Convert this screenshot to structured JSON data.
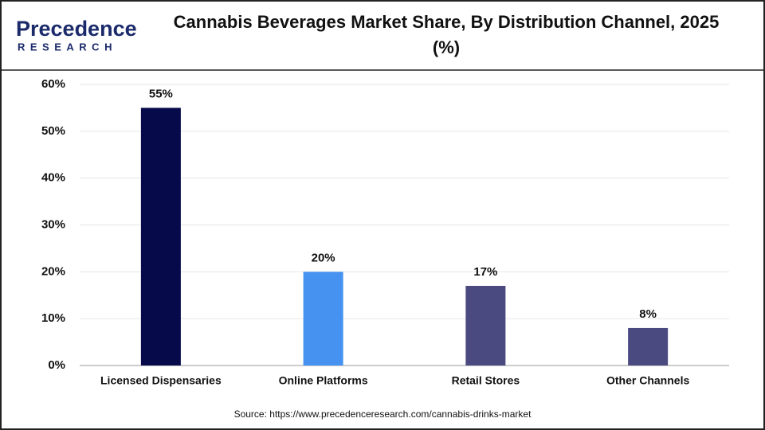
{
  "logo": {
    "name": "Precedence",
    "tagline": "RESEARCH"
  },
  "chart_data": {
    "type": "bar",
    "title": "Cannabis Beverages Market Share, By Distribution Channel, 2025 (%)",
    "categories": [
      "Licensed Dispensaries",
      "Online Platforms",
      "Retail Stores",
      "Other Channels"
    ],
    "values": [
      55,
      20,
      17,
      8
    ],
    "value_labels": [
      "55%",
      "20%",
      "17%",
      "8%"
    ],
    "colors": [
      "#060a4b",
      "#4592f0",
      "#4b4a80",
      "#4b4a80"
    ],
    "ylim": [
      0,
      60
    ],
    "yticks": [
      {
        "value": 0,
        "label": "0%"
      },
      {
        "value": 10,
        "label": "10%"
      },
      {
        "value": 20,
        "label": "20%"
      },
      {
        "value": 30,
        "label": "30%"
      },
      {
        "value": 40,
        "label": "40%"
      },
      {
        "value": 50,
        "label": "50%"
      },
      {
        "value": 60,
        "label": "60%"
      }
    ],
    "grid": true,
    "source": "Source: https://www.precedenceresearch.com/cannabis-drinks-market"
  }
}
